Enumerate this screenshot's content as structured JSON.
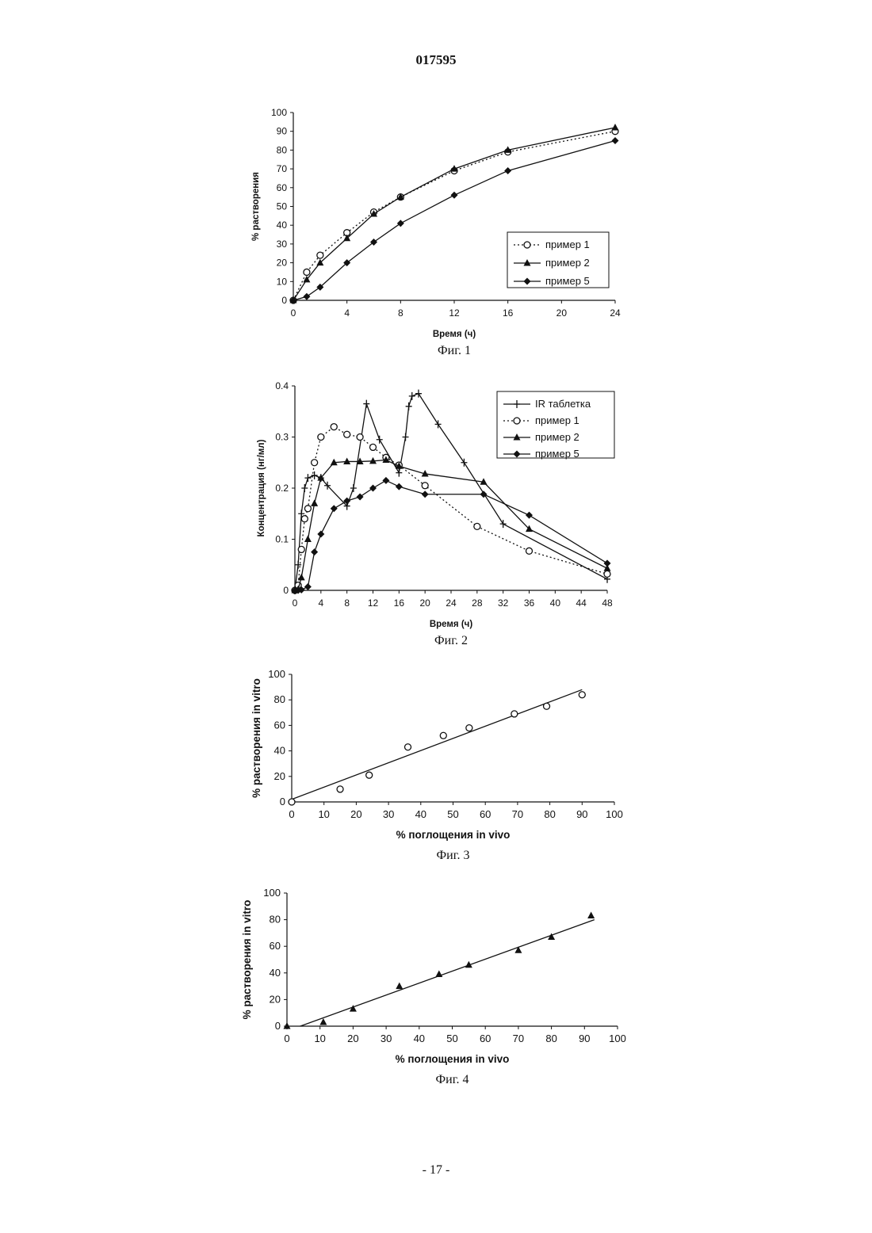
{
  "header": {
    "doc_number": "017595"
  },
  "footer": {
    "page": "- 17 -"
  },
  "chart_data": [
    {
      "type": "line",
      "caption": "Фиг. 1",
      "xlabel": "Время (ч)",
      "ylabel": "% растворения",
      "xlim": [
        0,
        24
      ],
      "ylim": [
        0,
        100
      ],
      "xticks": [
        0,
        4,
        8,
        12,
        16,
        20,
        24
      ],
      "yticks": [
        0,
        10,
        20,
        30,
        40,
        50,
        60,
        70,
        80,
        90,
        100
      ],
      "legend": "right-bottom",
      "series": [
        {
          "name": "пример 1",
          "marker": "circle",
          "line": "dotted",
          "x": [
            0,
            1,
            2,
            4,
            6,
            8,
            12,
            16,
            24
          ],
          "y": [
            0,
            15,
            24,
            36,
            47,
            55,
            69,
            79,
            90
          ]
        },
        {
          "name": "пример 2",
          "marker": "triangle",
          "line": "solid",
          "x": [
            0,
            1,
            2,
            4,
            6,
            8,
            12,
            16,
            24
          ],
          "y": [
            0,
            11,
            20,
            33,
            46,
            55,
            70,
            80,
            92
          ]
        },
        {
          "name": "пример 5",
          "marker": "diamond",
          "line": "solid",
          "x": [
            0,
            1,
            2,
            4,
            6,
            8,
            12,
            16,
            24
          ],
          "y": [
            0,
            2,
            7,
            20,
            31,
            41,
            56,
            69,
            85
          ]
        }
      ]
    },
    {
      "type": "line",
      "caption": "Фиг. 2",
      "xlabel": "Время (ч)",
      "ylabel": "Концентрация (нг/мл)",
      "xlim": [
        0,
        48
      ],
      "ylim": [
        0,
        0.4
      ],
      "xticks": [
        0,
        4,
        8,
        12,
        16,
        20,
        24,
        28,
        32,
        36,
        40,
        44,
        48
      ],
      "yticks": [
        0,
        0.1,
        0.2,
        0.3,
        0.4
      ],
      "legend": "top-right",
      "series": [
        {
          "name": "IR таблетка",
          "marker": "plus",
          "line": "solid",
          "x": [
            0,
            0.5,
            1,
            1.5,
            2,
            3,
            4,
            5,
            8,
            9,
            11,
            13,
            16,
            17,
            17.5,
            18,
            19,
            22,
            26,
            32,
            48
          ],
          "y": [
            0,
            0.05,
            0.15,
            0.2,
            0.22,
            0.225,
            0.22,
            0.205,
            0.165,
            0.2,
            0.365,
            0.295,
            0.23,
            0.3,
            0.36,
            0.38,
            0.385,
            0.325,
            0.25,
            0.13,
            0.022
          ]
        },
        {
          "name": "пример 1",
          "marker": "circle",
          "line": "dotted",
          "x": [
            0,
            0.5,
            1,
            1.5,
            2,
            3,
            4,
            6,
            8,
            10,
            12,
            14,
            16,
            20,
            28,
            36,
            48
          ],
          "y": [
            0,
            0.01,
            0.08,
            0.14,
            0.16,
            0.25,
            0.3,
            0.32,
            0.305,
            0.3,
            0.28,
            0.26,
            0.245,
            0.205,
            0.125,
            0.077,
            0.032
          ]
        },
        {
          "name": "пример 2",
          "marker": "triangle",
          "line": "solid",
          "x": [
            0,
            0.5,
            1,
            2,
            3,
            4,
            6,
            8,
            10,
            12,
            14,
            16,
            20,
            29,
            36,
            48
          ],
          "y": [
            0,
            0.002,
            0.025,
            0.1,
            0.17,
            0.22,
            0.25,
            0.252,
            0.252,
            0.253,
            0.255,
            0.243,
            0.228,
            0.212,
            0.12,
            0.043
          ]
        },
        {
          "name": "пример 5",
          "marker": "diamond",
          "line": "solid",
          "x": [
            0,
            0.5,
            1,
            2,
            3,
            4,
            6,
            8,
            10,
            12,
            14,
            16,
            20,
            29,
            36,
            48
          ],
          "y": [
            0,
            0,
            0.001,
            0.007,
            0.075,
            0.11,
            0.16,
            0.175,
            0.183,
            0.2,
            0.215,
            0.203,
            0.188,
            0.188,
            0.147,
            0.053
          ]
        }
      ]
    },
    {
      "type": "scatter",
      "caption": "Фиг. 3",
      "xlabel": "% поглощения in vivo",
      "ylabel": "% растворения in vitro",
      "xlim": [
        0,
        100
      ],
      "ylim": [
        0,
        100
      ],
      "xticks": [
        0,
        10,
        20,
        30,
        40,
        50,
        60,
        70,
        80,
        90,
        100
      ],
      "yticks": [
        0,
        20,
        40,
        60,
        80,
        100
      ],
      "marker": "circle",
      "points": {
        "x": [
          0,
          15,
          24,
          36,
          47,
          55,
          69,
          79,
          90
        ],
        "y": [
          0,
          10,
          21,
          43,
          52,
          58,
          69,
          75,
          84
        ]
      },
      "trendline": {
        "x": [
          0,
          90
        ],
        "y": [
          2,
          88
        ]
      }
    },
    {
      "type": "scatter",
      "caption": "Фиг. 4",
      "xlabel": "% поглощения in vivo",
      "ylabel": "% растворения in vitro",
      "xlim": [
        0,
        100
      ],
      "ylim": [
        0,
        100
      ],
      "xticks": [
        0,
        10,
        20,
        30,
        40,
        50,
        60,
        70,
        80,
        90,
        100
      ],
      "yticks": [
        0,
        20,
        40,
        60,
        80,
        100
      ],
      "marker": "triangle",
      "points": {
        "x": [
          0,
          11,
          20,
          34,
          46,
          55,
          70,
          80,
          92
        ],
        "y": [
          0,
          3,
          13,
          30,
          39,
          46,
          57,
          67,
          83
        ]
      },
      "trendline": {
        "x": [
          4,
          93
        ],
        "y": [
          0,
          80
        ]
      }
    }
  ]
}
